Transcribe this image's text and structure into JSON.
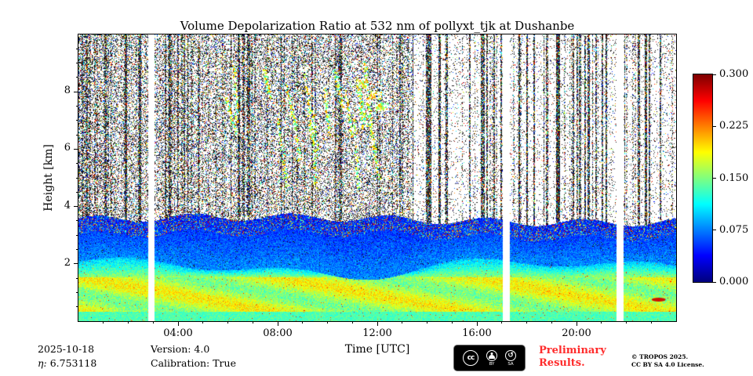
{
  "chart_data": {
    "type": "heatmap",
    "title": "Volume Depolarization Ratio at 532 nm of pollyxt_tjk at Dushanbe",
    "xlabel": "Time [UTC]",
    "ylabel": "Height [km]",
    "x_range_hours": [
      0,
      24
    ],
    "x_major_ticks": [
      {
        "hour": 4,
        "label": "04:00"
      },
      {
        "hour": 8,
        "label": "08:00"
      },
      {
        "hour": 12,
        "label": "12:00"
      },
      {
        "hour": 16,
        "label": "16:00"
      },
      {
        "hour": 20,
        "label": "20:00"
      }
    ],
    "y_range_km": [
      0,
      10
    ],
    "y_major_ticks": [
      {
        "km": 2,
        "label": "2"
      },
      {
        "km": 4,
        "label": "4"
      },
      {
        "km": 6,
        "label": "6"
      },
      {
        "km": 8,
        "label": "8"
      }
    ],
    "colormap": "jet",
    "value_range": [
      0,
      0.3
    ],
    "colorbar_ticks": [
      {
        "value": 0.3,
        "label": "0.300"
      },
      {
        "value": 0.225,
        "label": "0.225"
      },
      {
        "value": 0.15,
        "label": "0.150"
      },
      {
        "value": 0.075,
        "label": "0.075"
      },
      {
        "value": 0,
        "label": "0.000"
      }
    ],
    "data_gaps_hours": [
      [
        2.8,
        3.02
      ],
      [
        17.05,
        17.3
      ],
      [
        21.62,
        21.85
      ]
    ],
    "features": {
      "boundary_layer": {
        "height_range_km": [
          0,
          2.0
        ],
        "vdr_range": [
          0.1,
          0.2
        ],
        "appearance": "yellow-green aerosol layer with sparse orange flecks"
      },
      "transition_band": {
        "height_range_km": [
          2.0,
          3.6
        ],
        "vdr_range": [
          0.04,
          0.1
        ],
        "appearance": "cyan-blue band with speckled top edge"
      },
      "noise_region": {
        "height_range_km": [
          3.6,
          10
        ],
        "appearance": "salt-and-pepper speckle noise, dense until about 13:20 UTC, sparser with vertical black stripes afterwards"
      },
      "cirrus_fallstreaks": {
        "time_range_hours": [
          4.6,
          12.5
        ],
        "height_range_km": [
          6.3,
          9.2
        ],
        "appearance": "slanted yellow-green streaks with bright white cores"
      },
      "red_spot": {
        "hour": 23.3,
        "height_km": 0.75,
        "vdr": 0.29
      }
    }
  },
  "footer": {
    "date": "2025-10-18",
    "eta_label": "η:",
    "eta_value": "6.753118",
    "version": "Version: 4.0",
    "calibration": "Calibration: True",
    "preliminary_line1": "Preliminary",
    "preliminary_line2": "Results.",
    "copyright_line1": "© TROPOS 2025.",
    "copyright_line2": "CC BY SA 4.0 License.",
    "license_badge": {
      "cc": "cc",
      "by": "BY",
      "sa": "SA"
    }
  },
  "colors": {
    "preliminary_red": "#ff2b2b",
    "axis": "#000000",
    "background": "#ffffff"
  }
}
